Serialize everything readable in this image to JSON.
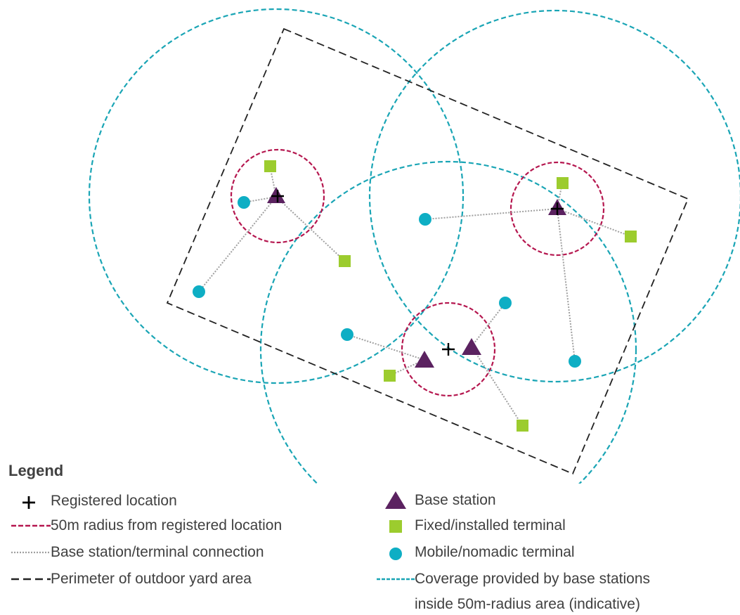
{
  "colors": {
    "coverage": "#1aa5b5",
    "radius": "#b5174f",
    "perimeter": "#222222",
    "connection": "#a0a0a0",
    "base_station": "#5b2260",
    "fixed_terminal": "#9ccc2e",
    "mobile_terminal": "#0eaec4",
    "registered": "#000000",
    "text": "#404040"
  },
  "legend": {
    "title": "Legend",
    "items": [
      {
        "key": "registered",
        "label": "Registered location",
        "icon": "plus-icon"
      },
      {
        "key": "radius",
        "label": "50m radius from registered location",
        "icon": "red-dashed-line-icon"
      },
      {
        "key": "connection",
        "label": "Base station/terminal connection",
        "icon": "grey-dotted-line-icon"
      },
      {
        "key": "perimeter",
        "label": "Perimeter of outdoor yard area",
        "icon": "black-dashed-line-icon"
      },
      {
        "key": "base",
        "label": "Base station",
        "icon": "triangle-icon"
      },
      {
        "key": "fixed",
        "label": "Fixed/installed terminal",
        "icon": "square-icon"
      },
      {
        "key": "mobile",
        "label": "Mobile/nomadic terminal",
        "icon": "circle-icon"
      },
      {
        "key": "coverage",
        "label": "Coverage provided by base stations",
        "label2": "inside 50m-radius area (indicative)",
        "icon": "teal-dashed-line-icon"
      }
    ]
  }
}
